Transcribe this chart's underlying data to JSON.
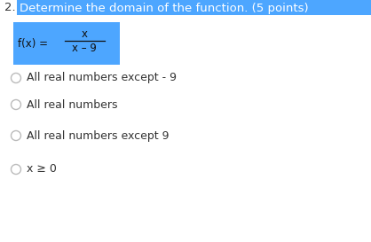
{
  "question_number": "2.",
  "question_text": "Determine the domain of the function. (5 points)",
  "question_bg_color": "#4DA6FF",
  "question_text_color": "#FFFFFF",
  "function_box_bg": "#4DA6FF",
  "function_numerator": "x",
  "function_denominator": "x – 9",
  "options": [
    "All real numbers except - 9",
    "All real numbers",
    "All real numbers except 9",
    "x ≥ 0"
  ],
  "bg_color": "#FFFFFF",
  "option_text_color": "#333333",
  "radio_color": "#BBBBBB",
  "font_size_question": 9.5,
  "font_size_options": 9,
  "font_size_function": 8.5
}
